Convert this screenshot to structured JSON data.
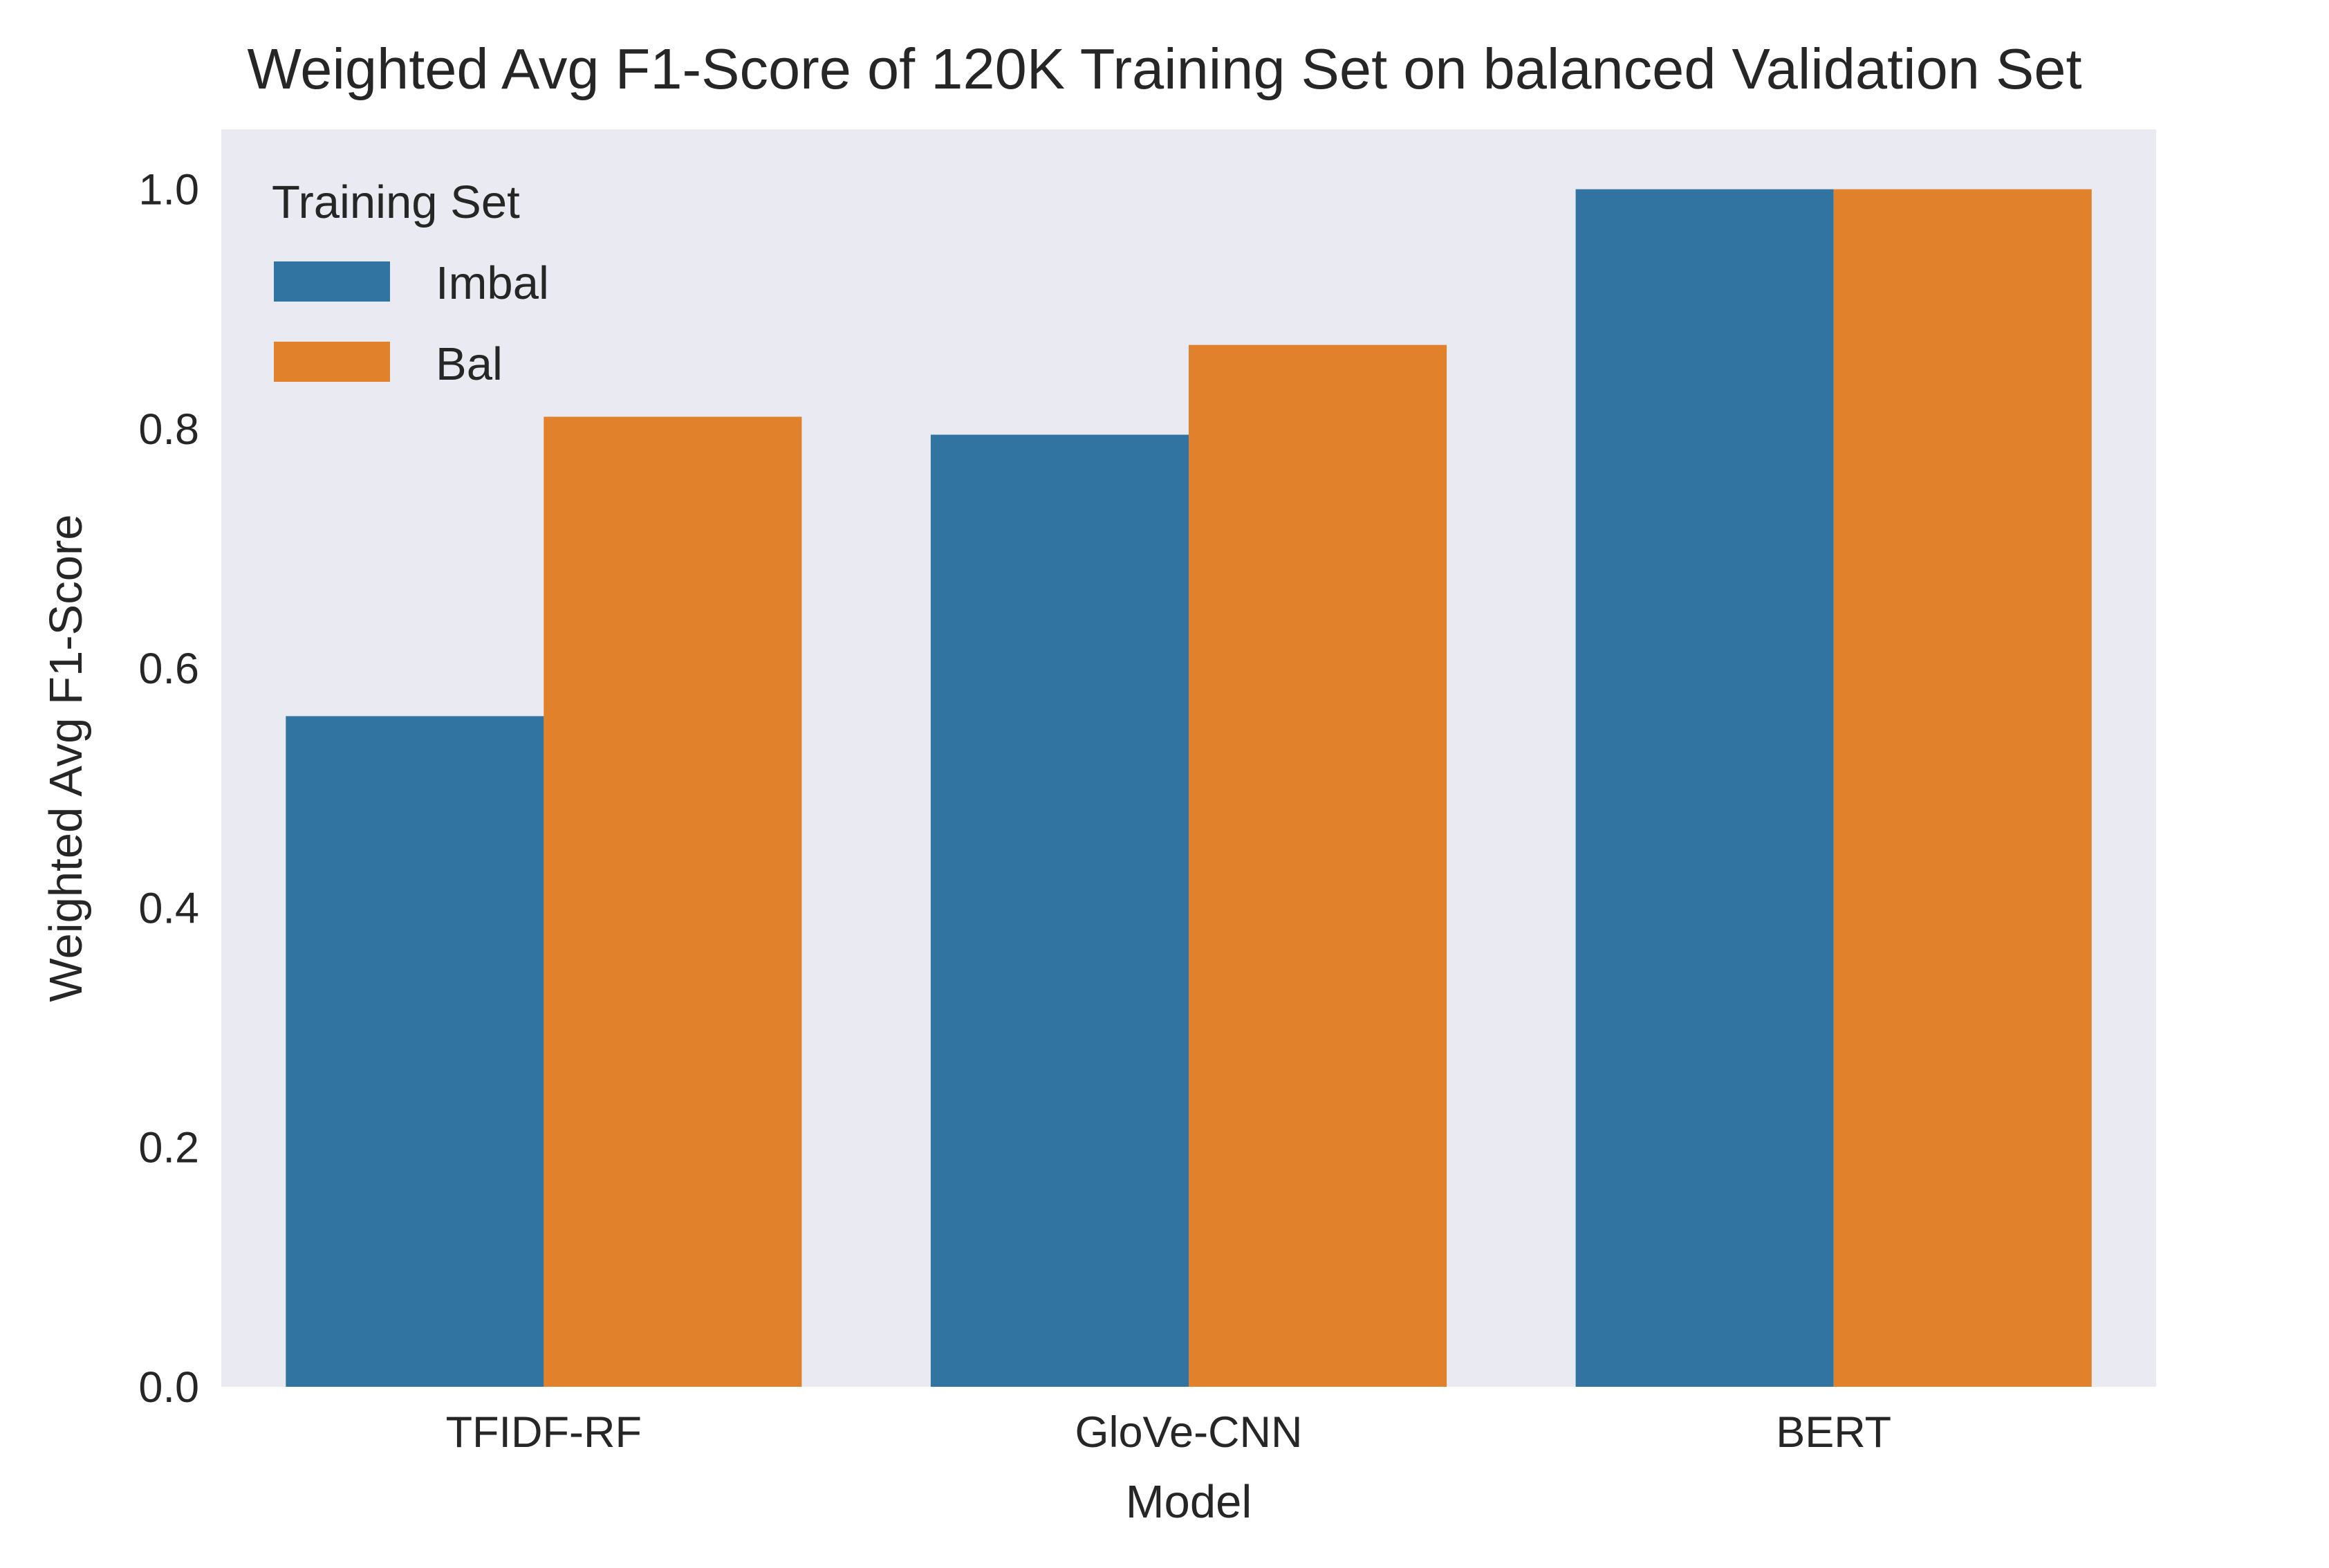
{
  "chart_data": {
    "type": "bar",
    "title": "Weighted Avg F1-Score of 120K Training Set on balanced Validation Set",
    "xlabel": "Model",
    "ylabel": "Weighted Avg F1-Score",
    "categories": [
      "TFIDF-RF",
      "GloVe-CNN",
      "BERT"
    ],
    "series": [
      {
        "name": "Imbal",
        "values": [
          0.56,
          0.795,
          1.0
        ],
        "color": "#3274a1"
      },
      {
        "name": "Bal",
        "values": [
          0.81,
          0.87,
          1.0
        ],
        "color": "#e1812c"
      }
    ],
    "ylim": [
      0,
      1.05
    ],
    "yticks": [
      "0.0",
      "0.2",
      "0.4",
      "0.6",
      "0.8",
      "1.0"
    ],
    "grid": false,
    "legend": {
      "title": "Training Set",
      "position": "top-left"
    },
    "plot_background": "#eaeaf2"
  }
}
